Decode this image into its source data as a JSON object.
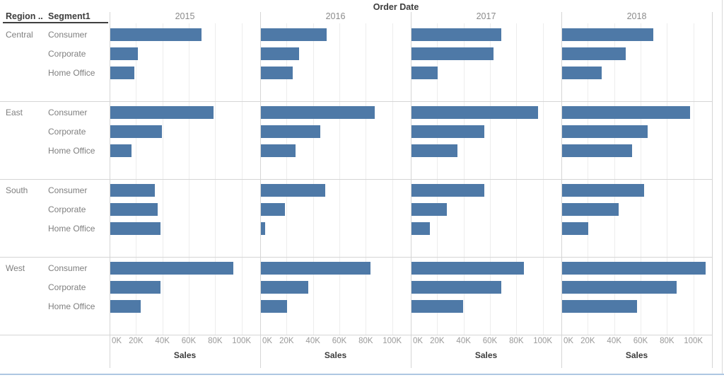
{
  "chart_data": {
    "type": "bar",
    "title": "Order Date",
    "corner_headers": [
      "Region ..",
      "Segment1"
    ],
    "years": [
      "2015",
      "2016",
      "2017",
      "2018"
    ],
    "segments": [
      "Consumer",
      "Corporate",
      "Home Office"
    ],
    "xlabel": "Sales",
    "x_ticks": [
      "0K",
      "20K",
      "40K",
      "60K",
      "80K",
      "100K"
    ],
    "x_tick_values": [
      0,
      20,
      40,
      60,
      80,
      100
    ],
    "xlim": [
      0,
      114
    ],
    "unit": "K",
    "value_field": "Sales (thousands)",
    "bar_color": "#4e79a7",
    "grid": true,
    "orientation": "horizontal",
    "regions": [
      {
        "name": "Central",
        "values_by_year": [
          [
            69,
            21,
            18
          ],
          [
            50,
            29,
            24
          ],
          [
            68,
            62,
            20
          ],
          [
            69,
            48,
            30
          ]
        ]
      },
      {
        "name": "East",
        "values_by_year": [
          [
            78,
            39,
            16
          ],
          [
            86,
            45,
            26
          ],
          [
            96,
            55,
            35
          ],
          [
            97,
            65,
            53
          ]
        ]
      },
      {
        "name": "South",
        "values_by_year": [
          [
            34,
            36,
            38
          ],
          [
            49,
            18,
            3
          ],
          [
            55,
            27,
            14
          ],
          [
            62,
            43,
            20
          ]
        ]
      },
      {
        "name": "West",
        "values_by_year": [
          [
            93,
            38,
            23
          ],
          [
            83,
            36,
            20
          ],
          [
            85,
            68,
            39
          ],
          [
            109,
            87,
            57
          ]
        ]
      }
    ]
  }
}
